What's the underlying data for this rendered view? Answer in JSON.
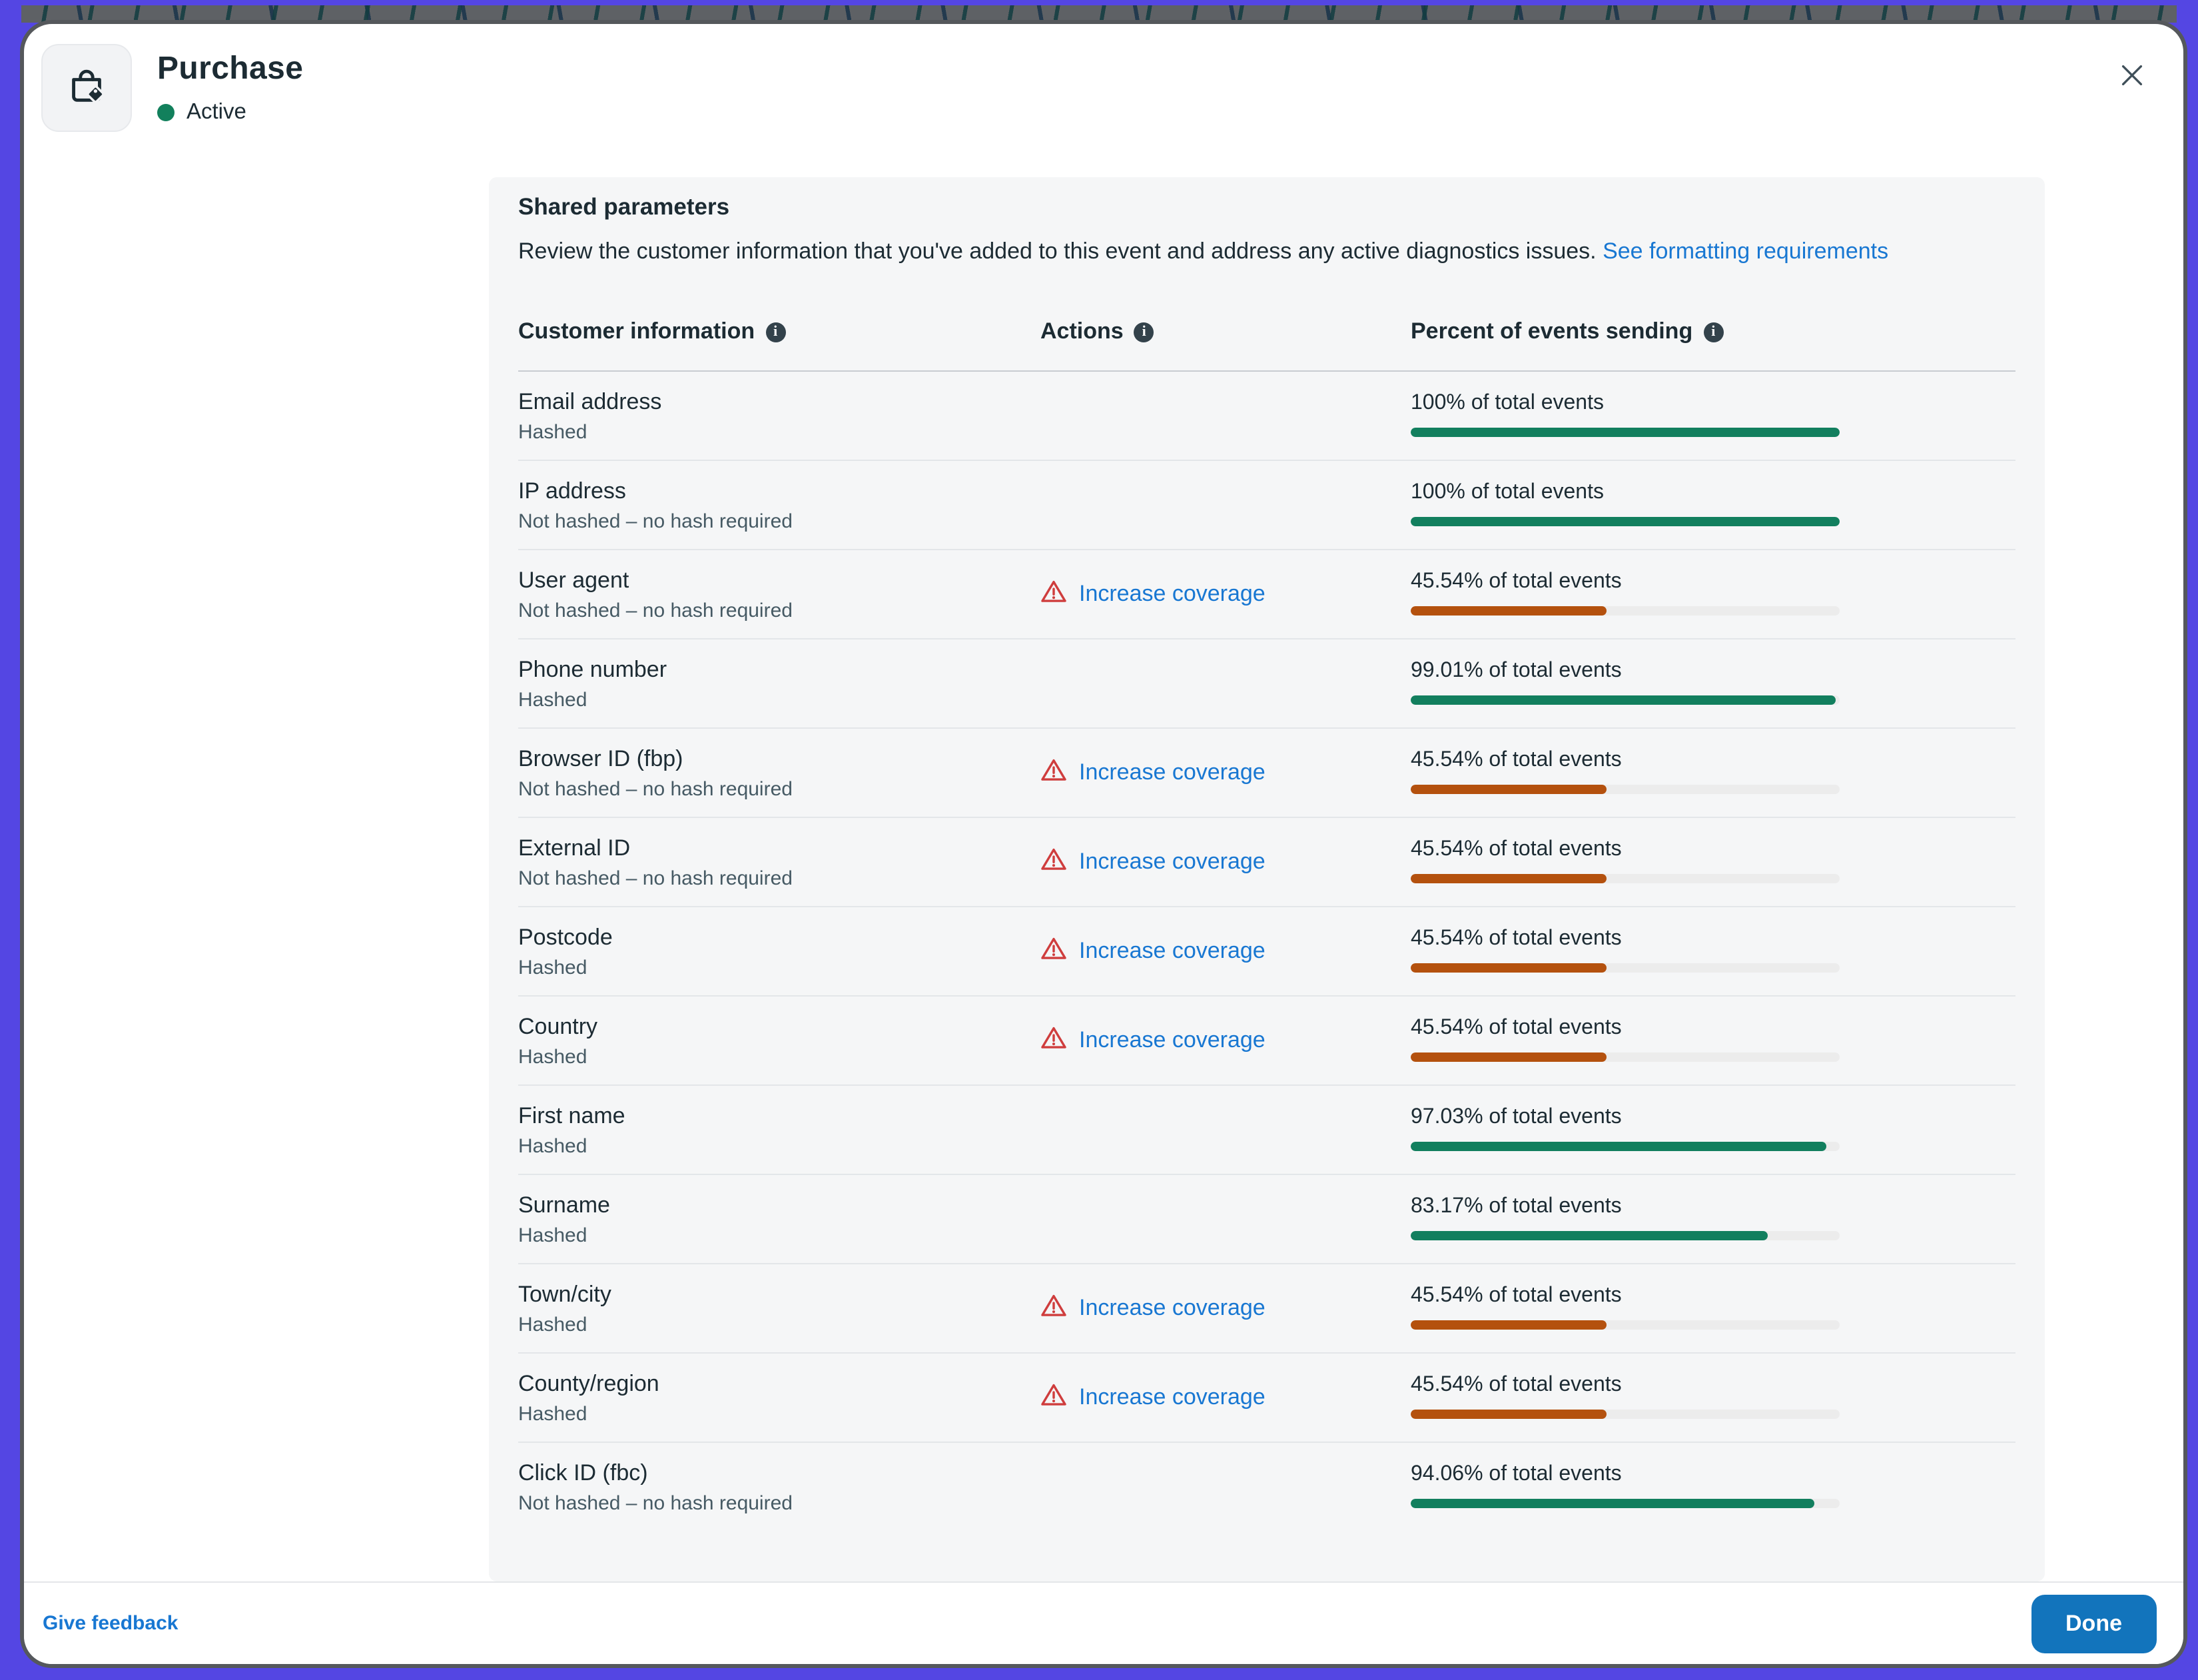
{
  "header": {
    "title": "Purchase",
    "status": "Active",
    "icon": "shopping-bag-tag-icon"
  },
  "section": {
    "heading": "Shared parameters",
    "description": "Review the customer information that you've added to this event and address any active diagnostics issues.",
    "link_text": "See formatting requirements"
  },
  "table": {
    "columns": [
      {
        "label": "Customer information",
        "info_icon": "info-icon"
      },
      {
        "label": "Actions",
        "info_icon": "info-icon"
      },
      {
        "label": "Percent of events sending",
        "info_icon": "info-icon"
      }
    ],
    "action_warning_icon": "warning-triangle-icon",
    "rows": [
      {
        "name": "Email address",
        "sub": "Hashed",
        "action": null,
        "percent_label": "100% of total events",
        "percent": 100,
        "bar_color": "green"
      },
      {
        "name": "IP address",
        "sub": "Not hashed – no hash required",
        "action": null,
        "percent_label": "100% of total events",
        "percent": 100,
        "bar_color": "green"
      },
      {
        "name": "User agent",
        "sub": "Not hashed – no hash required",
        "action": "Increase coverage",
        "percent_label": "45.54% of total events",
        "percent": 45.54,
        "bar_color": "orange"
      },
      {
        "name": "Phone number",
        "sub": "Hashed",
        "action": null,
        "percent_label": "99.01% of total events",
        "percent": 99.01,
        "bar_color": "green"
      },
      {
        "name": "Browser ID (fbp)",
        "sub": "Not hashed – no hash required",
        "action": "Increase coverage",
        "percent_label": "45.54% of total events",
        "percent": 45.54,
        "bar_color": "orange"
      },
      {
        "name": "External ID",
        "sub": "Not hashed – no hash required",
        "action": "Increase coverage",
        "percent_label": "45.54% of total events",
        "percent": 45.54,
        "bar_color": "orange"
      },
      {
        "name": "Postcode",
        "sub": "Hashed",
        "action": "Increase coverage",
        "percent_label": "45.54% of total events",
        "percent": 45.54,
        "bar_color": "orange"
      },
      {
        "name": "Country",
        "sub": "Hashed",
        "action": "Increase coverage",
        "percent_label": "45.54% of total events",
        "percent": 45.54,
        "bar_color": "orange"
      },
      {
        "name": "First name",
        "sub": "Hashed",
        "action": null,
        "percent_label": "97.03% of total events",
        "percent": 97.03,
        "bar_color": "green"
      },
      {
        "name": "Surname",
        "sub": "Hashed",
        "action": null,
        "percent_label": "83.17% of total events",
        "percent": 83.17,
        "bar_color": "green"
      },
      {
        "name": "Town/city",
        "sub": "Hashed",
        "action": "Increase coverage",
        "percent_label": "45.54% of total events",
        "percent": 45.54,
        "bar_color": "orange"
      },
      {
        "name": "County/region",
        "sub": "Hashed",
        "action": "Increase coverage",
        "percent_label": "45.54% of total events",
        "percent": 45.54,
        "bar_color": "orange"
      },
      {
        "name": "Click ID (fbc)",
        "sub": "Not hashed – no hash required",
        "action": null,
        "percent_label": "94.06% of total events",
        "percent": 94.06,
        "bar_color": "green"
      }
    ]
  },
  "footer": {
    "feedback_label": "Give feedback",
    "done_label": "Done"
  },
  "colors": {
    "green": "#127f5e",
    "orange": "#b4510e",
    "status_green": "#12805c",
    "link_blue": "#1877d2",
    "done_button_blue": "#1274bc",
    "frame_purple": "#5446e3"
  }
}
